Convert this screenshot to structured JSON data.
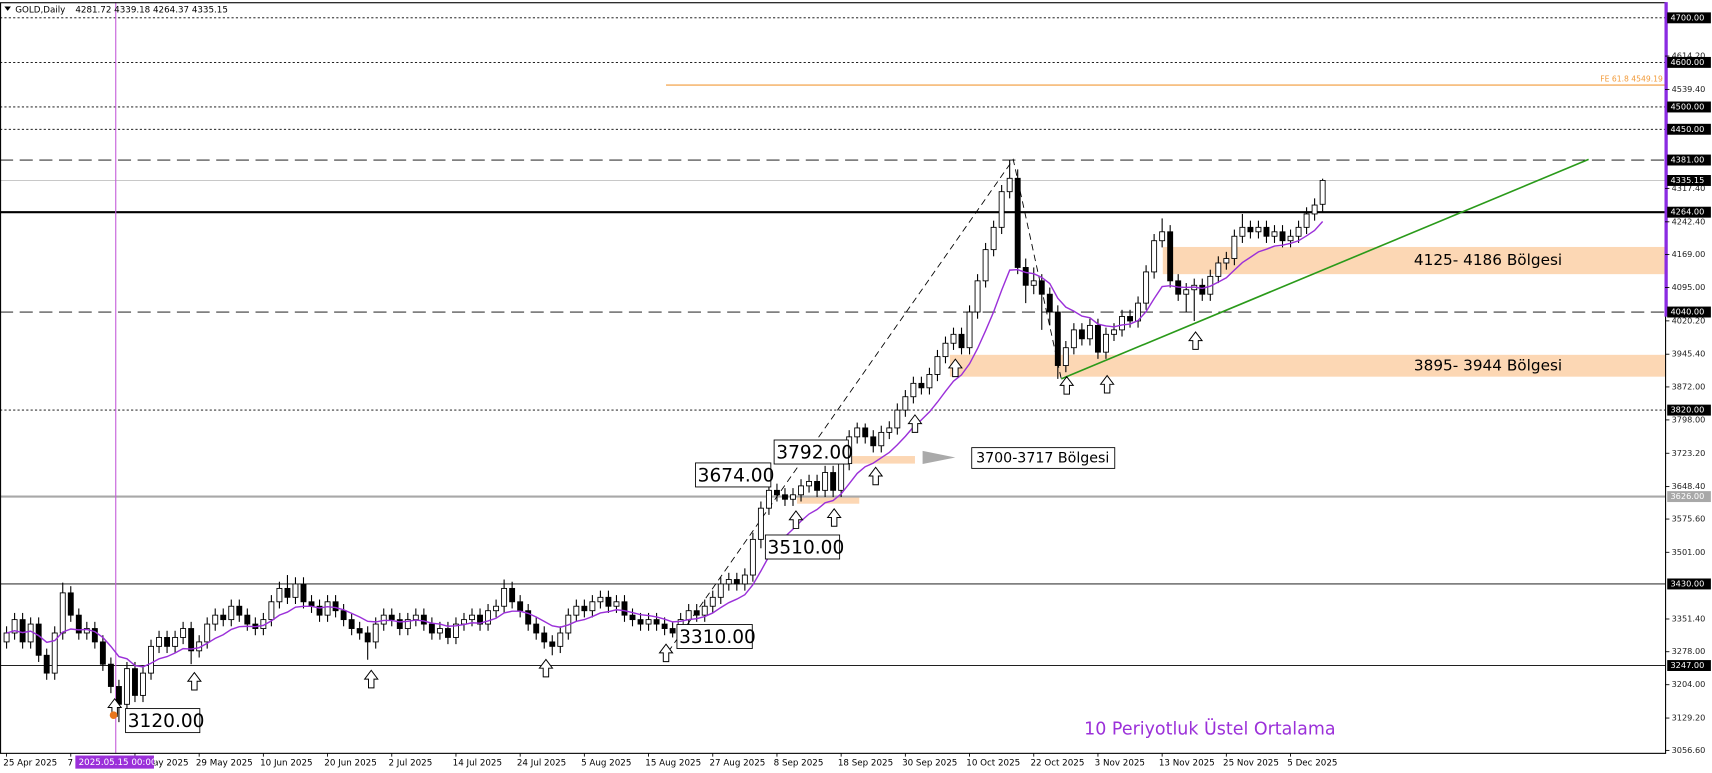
{
  "chart_data": {
    "type": "candlestick",
    "title": "GOLD,Daily",
    "header_values": "4281.72 4339.18 4264.37 4335.15",
    "crosshair_label": "2025.05.15 00:00",
    "ylim": [
      3050,
      4740
    ],
    "yticks": [
      {
        "value": 3056.6,
        "label": "3056.60"
      },
      {
        "value": 3129.2,
        "label": "3129.20"
      },
      {
        "value": 3204,
        "label": "3204.00"
      },
      {
        "value": 3278,
        "label": "3278.00"
      },
      {
        "value": 3351.4,
        "label": "3351.40"
      },
      {
        "value": 3501,
        "label": "3501.00"
      },
      {
        "value": 3575.6,
        "label": "3575.60"
      },
      {
        "value": 3648.4,
        "label": "3648.40"
      },
      {
        "value": 3723.2,
        "label": "3723.20"
      },
      {
        "value": 3798,
        "label": "3798.00"
      },
      {
        "value": 3872,
        "label": "3872.00"
      },
      {
        "value": 3945.4,
        "label": "3945.40"
      },
      {
        "value": 4020.2,
        "label": "4020.20"
      },
      {
        "value": 4095,
        "label": "4095.00"
      },
      {
        "value": 4169,
        "label": "4169.00"
      },
      {
        "value": 4242.4,
        "label": "4242.40"
      },
      {
        "value": 4317.4,
        "label": "4317.40"
      },
      {
        "value": 4539.4,
        "label": "4539.40"
      },
      {
        "value": 4614.2,
        "label": "4614.20"
      }
    ],
    "categories": [
      "25 Apr 2025",
      null,
      null,
      null,
      null,
      null,
      null,
      null,
      "7 May 2025",
      null,
      null,
      null,
      null,
      null,
      null,
      null,
      "19 May 2025",
      null,
      null,
      null,
      null,
      null,
      null,
      null,
      "29 May 2025",
      null,
      null,
      null,
      null,
      null,
      null,
      null,
      "10 Jun 2025",
      null,
      null,
      null,
      null,
      null,
      null,
      null,
      "20 Jun 2025",
      null,
      null,
      null,
      null,
      null,
      null,
      null,
      "2 Jul 2025",
      null,
      null,
      null,
      null,
      null,
      null,
      null,
      "14 Jul 2025",
      null,
      null,
      null,
      null,
      null,
      null,
      null,
      "24 Jul 2025",
      null,
      null,
      null,
      null,
      null,
      null,
      null,
      "5 Aug 2025",
      null,
      null,
      null,
      null,
      null,
      null,
      null,
      "15 Aug 2025",
      null,
      null,
      null,
      null,
      null,
      null,
      null,
      "27 Aug 2025",
      null,
      null,
      null,
      null,
      null,
      null,
      null,
      "8 Sep 2025",
      null,
      null,
      null,
      null,
      null,
      null,
      null,
      "18 Sep 2025",
      null,
      null,
      null,
      null,
      null,
      null,
      null,
      "30 Sep 2025",
      null,
      null,
      null,
      null,
      null,
      null,
      null,
      "10 Oct 2025",
      null,
      null,
      null,
      null,
      null,
      null,
      null,
      "22 Oct 2025",
      null,
      null,
      null,
      null,
      null,
      null,
      null,
      "3 Nov 2025",
      null,
      null,
      null,
      null,
      null,
      null,
      null,
      "13 Nov 2025",
      null,
      null,
      null,
      null,
      null,
      null,
      null,
      "25 Nov 2025",
      null,
      null,
      null,
      null,
      null,
      null,
      null,
      "5 Dec 2025",
      null,
      null,
      null,
      null
    ],
    "open": [
      3300,
      3320,
      3350,
      3300,
      3340,
      3270,
      3230,
      3320,
      3410,
      3360,
      3320,
      3330,
      3300,
      3250,
      3200,
      3160,
      3240,
      3180,
      3230,
      3290,
      3310,
      3290,
      3310,
      3330,
      3280,
      3300,
      3340,
      3360,
      3350,
      3380,
      3360,
      3340,
      3330,
      3350,
      3390,
      3420,
      3400,
      3430,
      3390,
      3380,
      3360,
      3390,
      3370,
      3350,
      3330,
      3320,
      3300,
      3340,
      3360,
      3350,
      3330,
      3350,
      3360,
      3340,
      3320,
      3330,
      3310,
      3340,
      3350,
      3360,
      3340,
      3370,
      3380,
      3420,
      3390,
      3370,
      3340,
      3320,
      3300,
      3290,
      3320,
      3360,
      3380,
      3370,
      3390,
      3400,
      3380,
      3390,
      3360,
      3350,
      3340,
      3350,
      3340,
      3330,
      3320,
      3350,
      3370,
      3360,
      3380,
      3400,
      3430,
      3440,
      3430,
      3450,
      3530,
      3600,
      3640,
      3630,
      3620,
      3630,
      3650,
      3660,
      3640,
      3680,
      3640,
      3700,
      3760,
      3780,
      3760,
      3740,
      3770,
      3780,
      3820,
      3850,
      3880,
      3870,
      3900,
      3940,
      3970,
      3990,
      3960,
      4040,
      4110,
      4180,
      4230,
      4310,
      4340,
      4140,
      4100,
      4110,
      4080,
      4040,
      3920,
      3960,
      4000,
      3980,
      4010,
      3950,
      3990,
      4000,
      4030,
      4020,
      4060,
      4130,
      4200,
      4220,
      4110,
      4080,
      4090,
      4100,
      4080,
      4120,
      4150,
      4160,
      4210,
      4230,
      4220,
      4230,
      4210,
      4220,
      4200,
      4210,
      4230,
      4260,
      4281.72
    ],
    "high": [
      3335,
      3365,
      3365,
      3355,
      3355,
      3285,
      3335,
      3433,
      3425,
      3375,
      3345,
      3345,
      3315,
      3265,
      3215,
      3255,
      3255,
      3245,
      3305,
      3325,
      3325,
      3325,
      3345,
      3345,
      3315,
      3355,
      3375,
      3375,
      3395,
      3395,
      3375,
      3355,
      3365,
      3405,
      3435,
      3450,
      3445,
      3445,
      3405,
      3395,
      3405,
      3405,
      3385,
      3365,
      3345,
      3335,
      3355,
      3375,
      3375,
      3365,
      3365,
      3375,
      3375,
      3355,
      3345,
      3345,
      3355,
      3365,
      3375,
      3375,
      3385,
      3395,
      3440,
      3435,
      3405,
      3385,
      3355,
      3335,
      3315,
      3335,
      3375,
      3395,
      3395,
      3405,
      3415,
      3415,
      3405,
      3405,
      3375,
      3365,
      3365,
      3365,
      3355,
      3345,
      3365,
      3385,
      3385,
      3395,
      3415,
      3445,
      3455,
      3455,
      3465,
      3545,
      3615,
      3674,
      3655,
      3645,
      3645,
      3665,
      3675,
      3675,
      3695,
      3695,
      3715,
      3775,
      3792,
      3790,
      3775,
      3785,
      3795,
      3835,
      3865,
      3895,
      3895,
      3915,
      3955,
      3985,
      4005,
      4005,
      4055,
      4125,
      4195,
      4245,
      4325,
      4381,
      4360,
      4160,
      4140,
      4125,
      4095,
      4055,
      3975,
      4015,
      4015,
      4025,
      4025,
      4005,
      4015,
      4045,
      4045,
      4075,
      4145,
      4215,
      4250,
      4235,
      4125,
      4105,
      4115,
      4115,
      4135,
      4165,
      4175,
      4225,
      4260,
      4245,
      4245,
      4245,
      4235,
      4235,
      4225,
      4245,
      4275,
      4295,
      4339.18
    ],
    "low": [
      3285,
      3305,
      3285,
      3285,
      3255,
      3215,
      3215,
      3305,
      3345,
      3305,
      3305,
      3285,
      3235,
      3185,
      3120,
      3145,
      3165,
      3165,
      3215,
      3275,
      3275,
      3275,
      3295,
      3250,
      3265,
      3285,
      3325,
      3335,
      3335,
      3345,
      3325,
      3315,
      3315,
      3335,
      3375,
      3385,
      3385,
      3375,
      3365,
      3345,
      3345,
      3355,
      3335,
      3315,
      3305,
      3260,
      3285,
      3325,
      3335,
      3315,
      3315,
      3335,
      3325,
      3305,
      3305,
      3295,
      3295,
      3325,
      3335,
      3325,
      3325,
      3355,
      3365,
      3375,
      3355,
      3325,
      3305,
      3285,
      3270,
      3275,
      3305,
      3345,
      3355,
      3355,
      3375,
      3365,
      3365,
      3345,
      3335,
      3325,
      3325,
      3325,
      3315,
      3310,
      3310,
      3335,
      3345,
      3345,
      3365,
      3385,
      3415,
      3415,
      3415,
      3435,
      3510,
      3585,
      3615,
      3605,
      3605,
      3615,
      3635,
      3625,
      3625,
      3625,
      3625,
      3685,
      3745,
      3745,
      3725,
      3725,
      3755,
      3765,
      3805,
      3835,
      3855,
      3855,
      3885,
      3925,
      3955,
      3945,
      3945,
      4025,
      4095,
      4165,
      4215,
      4295,
      4125,
      4060,
      4080,
      4000,
      4010,
      3890,
      3905,
      3945,
      3965,
      3965,
      3935,
      3935,
      3975,
      3985,
      4005,
      4005,
      4045,
      4115,
      4185,
      4095,
      4065,
      4040,
      4020,
      4065,
      4065,
      4105,
      4135,
      4145,
      4195,
      4205,
      4205,
      4195,
      4195,
      4185,
      4185,
      4195,
      4215,
      4245,
      4264.37
    ],
    "close": [
      3320,
      3350,
      3300,
      3340,
      3270,
      3230,
      3320,
      3410,
      3360,
      3320,
      3330,
      3300,
      3250,
      3200,
      3160,
      3240,
      3180,
      3230,
      3290,
      3310,
      3290,
      3310,
      3330,
      3280,
      3300,
      3340,
      3360,
      3350,
      3380,
      3360,
      3340,
      3330,
      3350,
      3390,
      3420,
      3400,
      3430,
      3390,
      3380,
      3360,
      3390,
      3370,
      3350,
      3330,
      3320,
      3300,
      3340,
      3360,
      3350,
      3330,
      3350,
      3360,
      3340,
      3320,
      3330,
      3310,
      3340,
      3350,
      3360,
      3340,
      3370,
      3380,
      3420,
      3390,
      3370,
      3340,
      3320,
      3300,
      3290,
      3320,
      3360,
      3380,
      3370,
      3390,
      3400,
      3380,
      3390,
      3360,
      3350,
      3340,
      3350,
      3340,
      3330,
      3320,
      3350,
      3370,
      3360,
      3380,
      3400,
      3430,
      3440,
      3430,
      3450,
      3530,
      3600,
      3640,
      3630,
      3620,
      3630,
      3650,
      3660,
      3640,
      3680,
      3640,
      3700,
      3760,
      3780,
      3760,
      3740,
      3770,
      3780,
      3820,
      3850,
      3880,
      3870,
      3900,
      3940,
      3970,
      3990,
      3960,
      4040,
      4110,
      4180,
      4230,
      4310,
      4340,
      4140,
      4100,
      4110,
      4080,
      4040,
      3920,
      3960,
      4000,
      3980,
      4010,
      3950,
      3990,
      4000,
      4030,
      4020,
      4060,
      4130,
      4200,
      4220,
      4110,
      4080,
      4090,
      4100,
      4080,
      4120,
      4150,
      4160,
      4210,
      4230,
      4220,
      4230,
      4210,
      4220,
      4200,
      4210,
      4230,
      4260,
      4280,
      4335.15
    ],
    "ema": {
      "name": "10 Periyotluk Üstel Ortalama",
      "color": "#9b30d9",
      "values": [
        3320,
        3325,
        3321,
        3324,
        3314,
        3299,
        3303,
        3322,
        3329,
        3327,
        3328,
        3323,
        3310,
        3290,
        3267,
        3262,
        3247,
        3244,
        3252,
        3262,
        3267,
        3275,
        3285,
        3284,
        3287,
        3297,
        3308,
        3316,
        3328,
        3334,
        3335,
        3334,
        3337,
        3347,
        3360,
        3367,
        3378,
        3380,
        3380,
        3376,
        3379,
        3377,
        3372,
        3364,
        3356,
        3346,
        3345,
        3348,
        3348,
        3345,
        3346,
        3349,
        3347,
        3342,
        3340,
        3335,
        3336,
        3339,
        3343,
        3342,
        3347,
        3353,
        3365,
        3369,
        3369,
        3364,
        3356,
        3346,
        3336,
        3333,
        3338,
        3346,
        3350,
        3357,
        3365,
        3368,
        3372,
        3370,
        3366,
        3361,
        3359,
        3356,
        3351,
        3345,
        3346,
        3350,
        3352,
        3357,
        3365,
        3377,
        3388,
        3396,
        3406,
        3428,
        3459,
        3492,
        3517,
        3536,
        3553,
        3571,
        3587,
        3597,
        3612,
        3617,
        3632,
        3655,
        3678,
        3693,
        3701,
        3713,
        3725,
        3742,
        3761,
        3782,
        3798,
        3816,
        3838,
        3862,
        3885,
        3899,
        3924,
        3958,
        3998,
        4040,
        4089,
        4134,
        4135,
        4129,
        4126,
        4118,
        4104,
        4071,
        4051,
        4042,
        4031,
        4027,
        4013,
        4009,
        4007,
        4011,
        4013,
        4021,
        4041,
        4070,
        4097,
        4099,
        4096,
        4095,
        4096,
        4093,
        4098,
        4107,
        4117,
        4134,
        4151,
        4163,
        4175,
        4181,
        4188,
        4190,
        4194,
        4200,
        4211,
        4223,
        4243
      ]
    },
    "levels": [
      {
        "value": 4700,
        "label": "4700.00",
        "style": "dotted",
        "color": "#000000"
      },
      {
        "value": 4600,
        "label": "4600.00",
        "style": "dotted",
        "color": "#000000"
      },
      {
        "value": 4500,
        "label": "4500.00",
        "style": "dotted",
        "color": "#000000"
      },
      {
        "value": 4450,
        "label": "4450.00",
        "style": "dotted",
        "color": "#000000"
      },
      {
        "value": 4381,
        "label": "4381.00",
        "style": "dashed",
        "color": "#000000"
      },
      {
        "value": 4335.15,
        "label": "4335.15",
        "style": "solid",
        "color": "#c0c0c0"
      },
      {
        "value": 4264,
        "label": "4264.00",
        "style": "thick",
        "color": "#000000"
      },
      {
        "value": 4040,
        "label": "4040.00",
        "style": "dashed",
        "color": "#000000"
      },
      {
        "value": 3820,
        "label": "3820.00",
        "style": "dotted",
        "color": "#000000"
      },
      {
        "value": 3626,
        "label": "3626.00",
        "style": "thick",
        "color": "#a8a8a8"
      },
      {
        "value": 3430,
        "label": "3430.00",
        "style": "solid",
        "color": "#000000"
      },
      {
        "value": 3247,
        "label": "3247.00",
        "style": "solid",
        "color": "#000000"
      }
    ],
    "fibo": {
      "value": 4549.19,
      "label": "FE 61.8 4549.19",
      "color": "#f29a38"
    },
    "zones": [
      {
        "low": 4125,
        "high": 4186,
        "label": "4125- 4186 Bölgesi"
      },
      {
        "low": 3895,
        "high": 3944,
        "label": "3895- 3944 Bölgesi"
      },
      {
        "low": 3700,
        "high": 3717,
        "label": "3700-3717 Bölgesi"
      },
      {
        "low": 3610,
        "high": 3626
      }
    ],
    "annotations": [
      {
        "value": 3120,
        "label": "3120.00"
      },
      {
        "value": 3310,
        "label": "3310.00"
      },
      {
        "value": 3510,
        "label": "3510.00"
      },
      {
        "value": 3674,
        "label": "3674.00"
      },
      {
        "value": 3792,
        "label": "3792.00"
      }
    ]
  }
}
